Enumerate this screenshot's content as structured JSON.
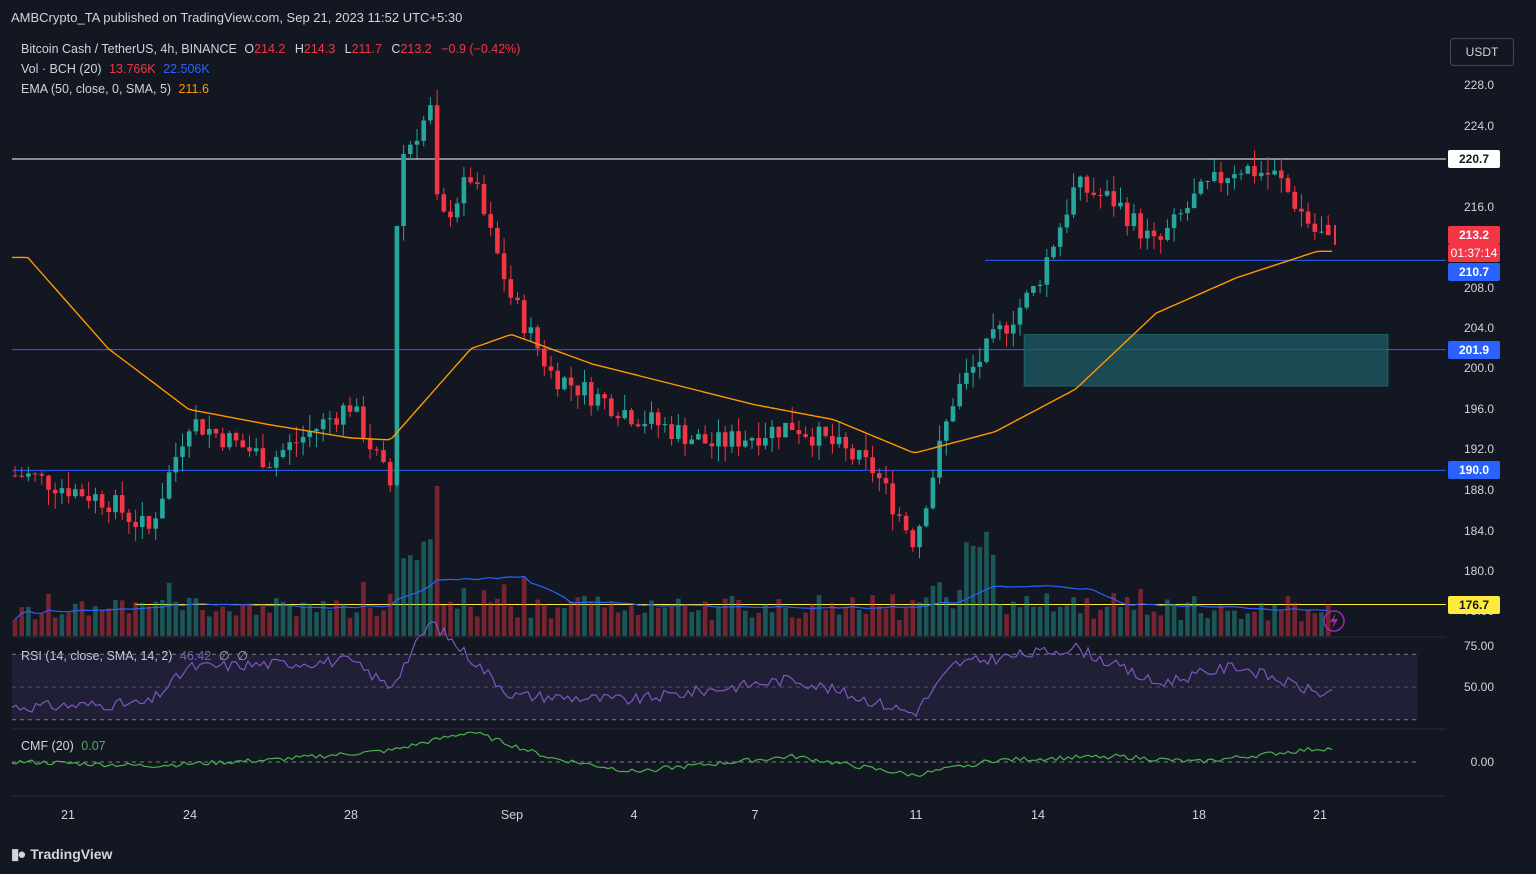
{
  "publisher": "AMBCrypto_TA published on TradingView.com, Sep 21, 2023 11:52 UTC+5:30",
  "legend": {
    "symbol": "Bitcoin Cash / TetherUS, 4h, BINANCE",
    "o_label": "O",
    "o_value": "214.2",
    "h_label": "H",
    "h_value": "214.3",
    "l_label": "L",
    "l_value": "211.7",
    "c_label": "C",
    "c_value": "213.2",
    "change": "−0.9 (−0.42%)",
    "vol_label": "Vol · BCH (20)",
    "vol_value": "13.766K",
    "vol_ma": "22.506K",
    "ema_label": "EMA (50, close, 0, SMA, 5)",
    "ema_value": "211.6",
    "rsi_label": "RSI (14, close, SMA, 14, 2)",
    "rsi_value": "46.42",
    "rsi_extra1": "∅",
    "rsi_extra2": "∅",
    "cmf_label": "CMF (20)",
    "cmf_value": "0.07"
  },
  "currency_button": "USDT",
  "price_axis": [
    "228.0",
    "224.0",
    "216.0",
    "208.0",
    "204.0",
    "200.0",
    "196.0",
    "192.0",
    "188.0",
    "184.0",
    "180.0"
  ],
  "price_badges": {
    "resistance": "220.7",
    "last_price": "213.2",
    "countdown": "01:37:14",
    "level_mid": "210.7",
    "level_zone": "201.9",
    "level_support": "190.0",
    "level_low": "176.7"
  },
  "volume_axis": "75.00",
  "rsi_axis": [
    "75.00",
    "50.00"
  ],
  "cmf_axis": "0.00",
  "time_axis": [
    "21",
    "24",
    "28",
    "Sep",
    "4",
    "7",
    "11",
    "14",
    "18",
    "21"
  ],
  "branding": "TradingView",
  "colors": {
    "background": "#131722",
    "bull": "#26a69a",
    "bear": "#f23645",
    "ema": "#ff9800",
    "level_line": "#2962ff",
    "resistance_line": "#ffffff",
    "low_line": "#ffeb3b",
    "zone": "#1f5c66",
    "rsi": "#7e57c2",
    "cmf": "#4caf50"
  },
  "chart_data": {
    "type": "candlestick",
    "symbol": "BCHUSDT",
    "interval": "4h",
    "ylim": [
      176.0,
      229.5
    ],
    "last": {
      "open": 214.2,
      "high": 214.3,
      "low": 211.7,
      "close": 213.2
    },
    "ema50_last": 211.6,
    "horizontal_levels": [
      220.7,
      210.7,
      201.9,
      190.0,
      176.7
    ],
    "zone": {
      "from_date": "Sep 13",
      "low": 198.3,
      "high": 203.4
    },
    "anchors": [
      {
        "date": "Aug 20",
        "price": 189.5
      },
      {
        "date": "Aug 22",
        "price": 187.0
      },
      {
        "date": "Aug 23",
        "price": 184.0
      },
      {
        "date": "Aug 24",
        "price": 195.0
      },
      {
        "date": "Aug 26",
        "price": 191.0
      },
      {
        "date": "Aug 28",
        "price": 196.5
      },
      {
        "date": "Aug 29",
        "price": 188.5
      },
      {
        "date": "Aug 29",
        "price": 220.5
      },
      {
        "date": "Aug 30",
        "price": 225.5
      },
      {
        "date": "Aug 30",
        "price": 214.0
      },
      {
        "date": "Aug 31",
        "price": 219.0
      },
      {
        "date": "Sep 1",
        "price": 207.0
      },
      {
        "date": "Sep 2",
        "price": 199.5
      },
      {
        "date": "Sep 4",
        "price": 195.5
      },
      {
        "date": "Sep 6",
        "price": 192.5
      },
      {
        "date": "Sep 8",
        "price": 194.5
      },
      {
        "date": "Sep 9",
        "price": 192.5
      },
      {
        "date": "Sep 10",
        "price": 190.0
      },
      {
        "date": "Sep 11",
        "price": 183.0
      },
      {
        "date": "Sep 12",
        "price": 197.5
      },
      {
        "date": "Sep 13",
        "price": 203.0
      },
      {
        "date": "Sep 14",
        "price": 208.0
      },
      {
        "date": "Sep 15",
        "price": 218.0
      },
      {
        "date": "Sep 16",
        "price": 216.5
      },
      {
        "date": "Sep 17",
        "price": 212.0
      },
      {
        "date": "Sep 18",
        "price": 217.0
      },
      {
        "date": "Sep 19",
        "price": 220.0
      },
      {
        "date": "Sep 20",
        "price": 219.0
      },
      {
        "date": "Sep 21",
        "price": 213.2
      }
    ],
    "ema50": [
      {
        "date": "Aug 20",
        "price": 211.0
      },
      {
        "date": "Aug 22",
        "price": 202.0
      },
      {
        "date": "Aug 24",
        "price": 196.0
      },
      {
        "date": "Aug 26",
        "price": 194.5
      },
      {
        "date": "Aug 28",
        "price": 193.2
      },
      {
        "date": "Aug 29",
        "price": 193.0
      },
      {
        "date": "Aug 31",
        "price": 202.0
      },
      {
        "date": "Sep 1",
        "price": 203.4
      },
      {
        "date": "Sep 3",
        "price": 200.5
      },
      {
        "date": "Sep 5",
        "price": 198.5
      },
      {
        "date": "Sep 7",
        "price": 196.5
      },
      {
        "date": "Sep 9",
        "price": 195.0
      },
      {
        "date": "Sep 11",
        "price": 191.7
      },
      {
        "date": "Sep 13",
        "price": 193.8
      },
      {
        "date": "Sep 15",
        "price": 198.0
      },
      {
        "date": "Sep 17",
        "price": 205.5
      },
      {
        "date": "Sep 19",
        "price": 209.0
      },
      {
        "date": "Sep 21",
        "price": 211.6
      }
    ],
    "rsi": [
      {
        "date": "Aug 20",
        "value": 38
      },
      {
        "date": "Aug 23",
        "value": 40
      },
      {
        "date": "Aug 24",
        "value": 62
      },
      {
        "date": "Aug 28",
        "value": 66
      },
      {
        "date": "Aug 29",
        "value": 50
      },
      {
        "date": "Aug 30",
        "value": 90
      },
      {
        "date": "Sep 1",
        "value": 45
      },
      {
        "date": "Sep 4",
        "value": 42
      },
      {
        "date": "Sep 8",
        "value": 55
      },
      {
        "date": "Sep 11",
        "value": 34
      },
      {
        "date": "Sep 12",
        "value": 64
      },
      {
        "date": "Sep 15",
        "value": 74
      },
      {
        "date": "Sep 17",
        "value": 52
      },
      {
        "date": "Sep 19",
        "value": 63
      },
      {
        "date": "Sep 21",
        "value": 46.42
      }
    ],
    "cmf": [
      {
        "date": "Aug 20",
        "value": 0.0
      },
      {
        "date": "Aug 23",
        "value": -0.02
      },
      {
        "date": "Aug 26",
        "value": 0.01
      },
      {
        "date": "Aug 29",
        "value": 0.06
      },
      {
        "date": "Aug 31",
        "value": 0.16
      },
      {
        "date": "Sep 2",
        "value": 0.02
      },
      {
        "date": "Sep 4",
        "value": -0.05
      },
      {
        "date": "Sep 8",
        "value": 0.03
      },
      {
        "date": "Sep 11",
        "value": -0.07
      },
      {
        "date": "Sep 13",
        "value": 0.01
      },
      {
        "date": "Sep 16",
        "value": 0.03
      },
      {
        "date": "Sep 18",
        "value": 0.0
      },
      {
        "date": "Sep 21",
        "value": 0.07
      }
    ]
  }
}
